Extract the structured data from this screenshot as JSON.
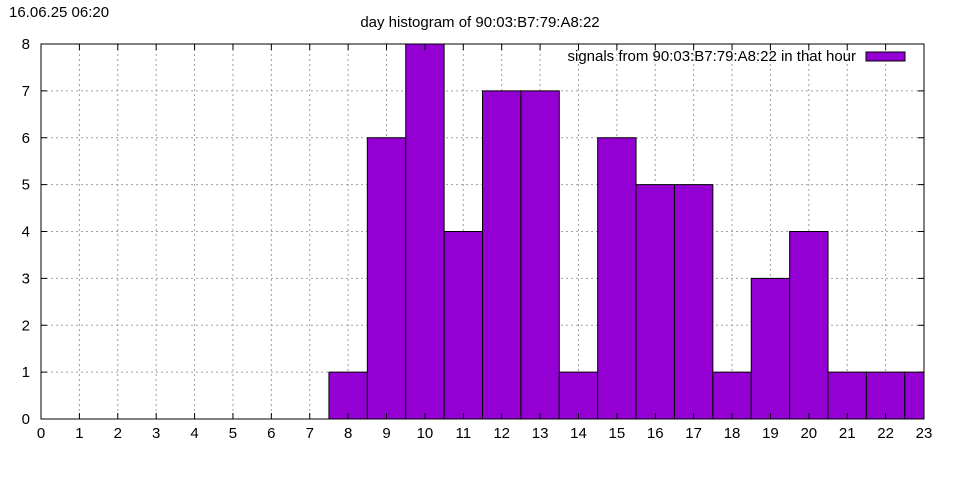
{
  "timestamp": "16.06.25 06:20",
  "chart_data": {
    "type": "bar",
    "title": "day histogram of 90:03:B7:79:A8:22",
    "xlabel": "",
    "ylabel": "",
    "xlim": [
      0,
      23
    ],
    "ylim": [
      0,
      8
    ],
    "x_ticks": [
      0,
      1,
      2,
      3,
      4,
      5,
      6,
      7,
      8,
      9,
      10,
      11,
      12,
      13,
      14,
      15,
      16,
      17,
      18,
      19,
      20,
      21,
      22,
      23
    ],
    "y_ticks": [
      0,
      1,
      2,
      3,
      4,
      5,
      6,
      7,
      8
    ],
    "grid": true,
    "legend_position": "top-right",
    "bar_color": "#9400d3",
    "series": [
      {
        "name": "signals from 90:03:B7:79:A8:22 in that hour",
        "categories": [
          8,
          9,
          10,
          11,
          12,
          13,
          14,
          15,
          16,
          17,
          18,
          19,
          20,
          21,
          22,
          23
        ],
        "values": [
          1,
          6,
          8,
          4,
          7,
          7,
          1,
          6,
          5,
          5,
          1,
          3,
          4,
          1,
          1,
          1
        ]
      }
    ]
  }
}
